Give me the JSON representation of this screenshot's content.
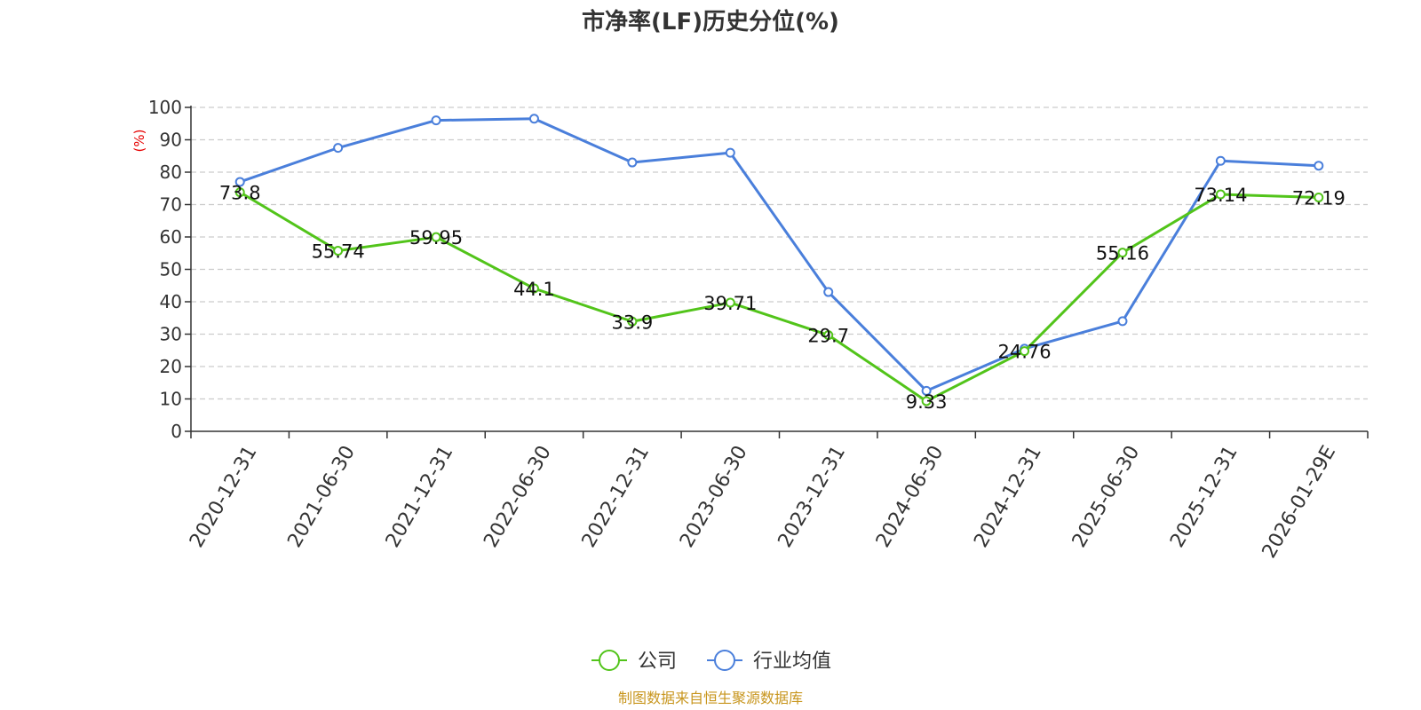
{
  "chart_data": {
    "type": "line",
    "title": "市净率(LF)历史分位(%)",
    "ylabel": "(%)",
    "xlabel": "",
    "ylim": [
      0,
      100
    ],
    "yticks": [
      0,
      10,
      20,
      30,
      40,
      50,
      60,
      70,
      80,
      90,
      100
    ],
    "grid": true,
    "legend_position": "bottom",
    "categories": [
      "2020-12-31",
      "2021-06-30",
      "2021-12-31",
      "2022-06-30",
      "2022-12-31",
      "2023-06-30",
      "2023-12-31",
      "2024-06-30",
      "2024-12-31",
      "2025-06-30",
      "2025-12-31",
      "2026-01-29E"
    ],
    "series": [
      {
        "name": "公司",
        "color": "#52c41a",
        "values": [
          73.8,
          55.74,
          59.95,
          44.1,
          33.9,
          39.71,
          29.7,
          9.33,
          24.76,
          55.16,
          73.14,
          72.19
        ],
        "labels": [
          "73.8",
          "55.74",
          "59.95",
          "44.1",
          "33.9",
          "39.71",
          "29.7",
          "9.33",
          "24.76",
          "55.16",
          "73.14",
          "72.19"
        ]
      },
      {
        "name": "行业均值",
        "color": "#4a7fdb",
        "values": [
          77,
          87.5,
          96,
          96.5,
          83,
          86,
          43,
          12.5,
          25.5,
          34,
          83.5,
          82
        ]
      }
    ],
    "source": "制图数据来自恒生聚源数据库",
    "colors": {
      "ylabel": "#e60000",
      "source": "#c8961e",
      "axis": "#333333",
      "grid": "#cccccc"
    }
  }
}
